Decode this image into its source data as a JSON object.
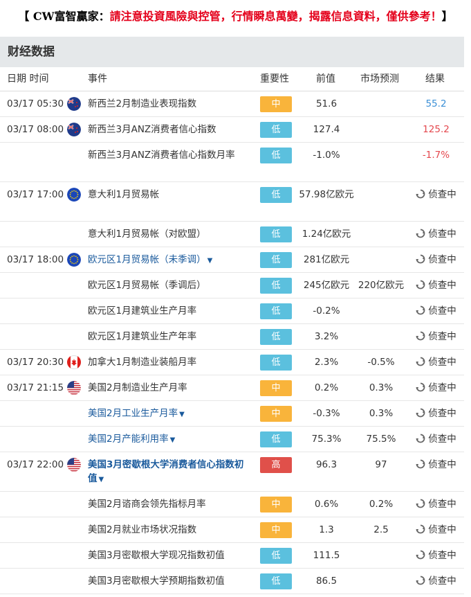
{
  "banner": {
    "left": "【 CW富智贏家：",
    "warning": "請注意投資風險與控管，行情瞬息萬變，揭露信息資料，僅供參考！",
    "right": "】"
  },
  "section_title": "财经数据",
  "headers": {
    "date_time": "日期  时间",
    "event": "事件",
    "importance": "重要性",
    "previous": "前值",
    "forecast": "市场预测",
    "result": "结果"
  },
  "pending_label": "侦查中",
  "colors": {
    "low": "#5bc0de",
    "mid": "#f9b43b",
    "high": "#e0504a",
    "link": "#1a5a9c"
  },
  "rows": [
    {
      "time": "03/17 05:30",
      "flag": "nz-flag-icon",
      "event": "新西兰2月制造业表现指数",
      "importance": "中",
      "level": "mid",
      "previous": "51.6",
      "forecast": "",
      "result": "55.2",
      "result_color": "blue"
    },
    {
      "time": "03/17 08:00",
      "flag": "nz-flag-icon",
      "event": "新西兰3月ANZ消费者信心指数",
      "importance": "低",
      "level": "low",
      "previous": "127.4",
      "forecast": "",
      "result": "125.2",
      "result_color": "red"
    },
    {
      "time": "",
      "flag": "",
      "event": "新西兰3月ANZ消费者信心指数月率",
      "importance": "低",
      "level": "low",
      "previous": "-1.0%",
      "forecast": "",
      "result": "-1.7%",
      "result_color": "red"
    },
    {
      "time": "03/17 17:00",
      "flag": "eu-flag-icon",
      "event": "意大利1月贸易帐",
      "importance": "低",
      "level": "low",
      "previous": "57.98亿欧元",
      "forecast": "",
      "result": "侦查中",
      "result_color": "pending"
    },
    {
      "time": "",
      "flag": "",
      "event": "意大利1月贸易帐（对欧盟）",
      "importance": "低",
      "level": "low",
      "previous": "1.24亿欧元",
      "forecast": "",
      "result": "侦查中",
      "result_color": "pending"
    },
    {
      "time": "03/17 18:00",
      "flag": "eu-flag-icon",
      "event": "欧元区1月贸易帐（未季调）",
      "importance": "低",
      "level": "low",
      "previous": "281亿欧元",
      "forecast": "",
      "result": "侦查中",
      "result_color": "pending",
      "link": true
    },
    {
      "time": "",
      "flag": "",
      "event": "欧元区1月贸易帐（季调后）",
      "importance": "低",
      "level": "low",
      "previous": "245亿欧元",
      "forecast": "220亿欧元",
      "result": "侦查中",
      "result_color": "pending"
    },
    {
      "time": "",
      "flag": "",
      "event": "欧元区1月建筑业生产月率",
      "importance": "低",
      "level": "low",
      "previous": "-0.2%",
      "forecast": "",
      "result": "侦查中",
      "result_color": "pending"
    },
    {
      "time": "",
      "flag": "",
      "event": "欧元区1月建筑业生产年率",
      "importance": "低",
      "level": "low",
      "previous": "3.2%",
      "forecast": "",
      "result": "侦查中",
      "result_color": "pending"
    },
    {
      "time": "03/17 20:30",
      "flag": "ca-flag-icon",
      "event": "加拿大1月制造业装船月率",
      "importance": "低",
      "level": "low",
      "previous": "2.3%",
      "forecast": "-0.5%",
      "result": "侦查中",
      "result_color": "pending"
    },
    {
      "time": "03/17 21:15",
      "flag": "us-flag-icon",
      "event": "美国2月制造业生产月率",
      "importance": "中",
      "level": "mid",
      "previous": "0.2%",
      "forecast": "0.3%",
      "result": "侦查中",
      "result_color": "pending"
    },
    {
      "time": "",
      "flag": "",
      "event": "美国2月工业生产月率",
      "importance": "中",
      "level": "mid",
      "previous": "-0.3%",
      "forecast": "0.3%",
      "result": "侦查中",
      "result_color": "pending",
      "link": true
    },
    {
      "time": "",
      "flag": "",
      "event": "美国2月产能利用率",
      "importance": "低",
      "level": "low",
      "previous": "75.3%",
      "forecast": "75.5%",
      "result": "侦查中",
      "result_color": "pending",
      "link": true
    },
    {
      "time": "03/17 22:00",
      "flag": "us-flag-icon",
      "event": "美国3月密歇根大学消费者信心指数初值",
      "importance": "高",
      "level": "high",
      "previous": "96.3",
      "forecast": "97",
      "result": "侦查中",
      "result_color": "pending",
      "link": true,
      "bold": true
    },
    {
      "time": "",
      "flag": "",
      "event": "美国2月谘商会领先指标月率",
      "importance": "中",
      "level": "mid",
      "previous": "0.6%",
      "forecast": "0.2%",
      "result": "侦查中",
      "result_color": "pending"
    },
    {
      "time": "",
      "flag": "",
      "event": "美国2月就业市场状况指数",
      "importance": "中",
      "level": "mid",
      "previous": "1.3",
      "forecast": "2.5",
      "result": "侦查中",
      "result_color": "pending"
    },
    {
      "time": "",
      "flag": "",
      "event": "美国3月密歇根大学现况指数初值",
      "importance": "低",
      "level": "low",
      "previous": "111.5",
      "forecast": "",
      "result": "侦查中",
      "result_color": "pending"
    },
    {
      "time": "",
      "flag": "",
      "event": "美国3月密歇根大学预期指数初值",
      "importance": "低",
      "level": "low",
      "previous": "86.5",
      "forecast": "",
      "result": "侦查中",
      "result_color": "pending"
    }
  ]
}
